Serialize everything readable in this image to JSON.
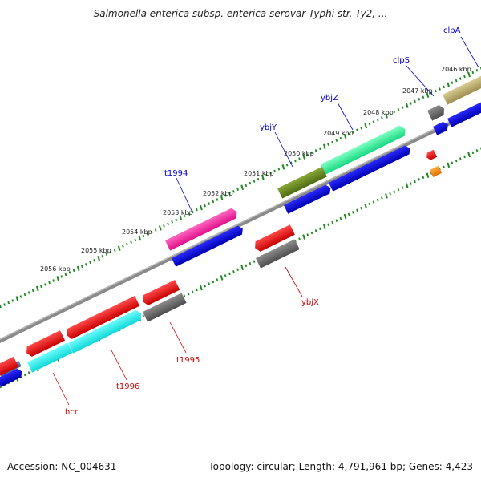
{
  "title": "Salmonella enterica subsp. enterica serovar Typhi str. Ty2, ...",
  "footer": {
    "accession": "Accession: NC_004631",
    "topology": "Topology: circular; Length: 4,791,961 bp; Genes: 4,423"
  },
  "colors": {
    "backbone": "#8a8a8a",
    "ticks": "#1e8a1e",
    "plus_label": "#0000cc",
    "minus_label": "#cc0000"
  },
  "kbp_labels": [
    "2046 kbp",
    "2047 kbp",
    "2048 kbp",
    "2049 kbp",
    "2050 kbp",
    "2051 kbp",
    "2052 kbp",
    "2053 kbp",
    "2054 kbp",
    "2055 kbp",
    "2056 kbp"
  ],
  "genes": [
    {
      "name": "clpA",
      "strand": "plus",
      "color": "#c2b373"
    },
    {
      "name": "clpS",
      "strand": "plus",
      "color": "#6e6e6e"
    },
    {
      "name": "ybjZ",
      "strand": "plus",
      "color": "#2ee89a"
    },
    {
      "name": "ybjY",
      "strand": "plus",
      "color": "#6e8a24"
    },
    {
      "name": "t1994",
      "strand": "plus",
      "color": "#ff2a9e"
    },
    {
      "name": "ybjX",
      "strand": "minus",
      "color": "#6e6e6e"
    },
    {
      "name": "t1995",
      "strand": "minus",
      "color": "#6e6e6e"
    },
    {
      "name": "t1996",
      "strand": "minus",
      "color": "#19f0f0"
    },
    {
      "name": "hcr",
      "strand": "minus",
      "color": "#cc0000"
    }
  ]
}
